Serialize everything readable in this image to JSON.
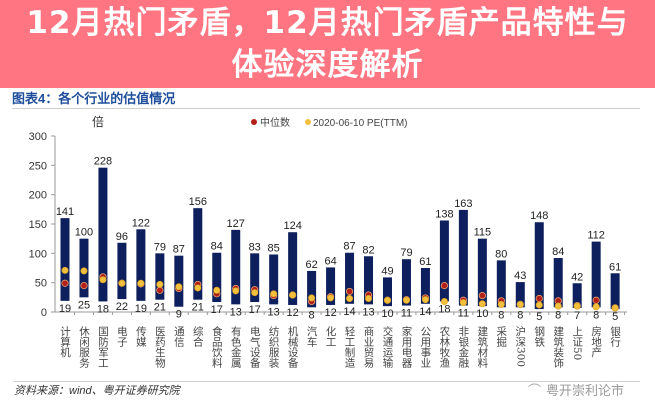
{
  "figure_title": "图表4：各个行业的估值情况",
  "source": "资料来源：wind、粤开证券研究院",
  "watermark": "粤开崇利论市",
  "banner": {
    "line1": "12月热门矛盾，12月热门矛盾产品特性与",
    "line2": "体验深度解析"
  },
  "colors": {
    "bar": "#0d1f5c",
    "median": "#b22018",
    "current": "#f2c03c",
    "title": "#1f4e9c",
    "banner": "#ff5f6e"
  },
  "chart_data": {
    "type": "bar",
    "ylabel": "倍",
    "ylim": [
      0,
      300
    ],
    "yticks": [
      "0",
      "50",
      "100",
      "150",
      "200",
      "250",
      "300"
    ],
    "legend": [
      "中位数",
      "2020-06-10 PE(TTM)"
    ],
    "legend_position": "top",
    "categories": [
      "计算机",
      "休闲服务",
      "国防军工",
      "电子",
      "传媒",
      "医药生物",
      "通信",
      "综合",
      "食品饮料",
      "有色金属",
      "电气设备",
      "纺织服装",
      "机械设备",
      "汽车",
      "化工",
      "轻工制造",
      "商业贸易",
      "交通运输",
      "家用电器",
      "公用事业",
      "农林牧渔",
      "非银金融",
      "建筑材料",
      "采掘",
      "沪深300",
      "钢铁",
      "建筑装饰",
      "上证50",
      "房地产",
      "银行"
    ],
    "min": [
      19,
      25,
      18,
      22,
      19,
      21,
      9,
      21,
      17,
      13,
      17,
      13,
      12,
      8,
      12,
      14,
      13,
      10,
      11,
      14,
      18,
      11,
      10,
      8,
      8,
      5,
      8,
      7,
      8,
      5
    ],
    "max": [
      141,
      100,
      228,
      96,
      122,
      79,
      87,
      156,
      84,
      127,
      83,
      85,
      124,
      62,
      64,
      87,
      82,
      49,
      79,
      61,
      138,
      163,
      115,
      80,
      43,
      148,
      84,
      42,
      112,
      61
    ],
    "median": [
      49,
      45,
      60,
      49,
      48,
      37,
      40,
      47,
      31,
      40,
      38,
      28,
      29,
      18,
      26,
      35,
      29,
      20,
      21,
      24,
      45,
      20,
      28,
      19,
      13,
      23,
      19,
      11,
      20,
      7
    ],
    "current": [
      71,
      70,
      55,
      49,
      49,
      47,
      43,
      41,
      37,
      36,
      33,
      31,
      29,
      24,
      24,
      23,
      23,
      20,
      20,
      21,
      18,
      16,
      14,
      13,
      13,
      12,
      10,
      10,
      9,
      7
    ]
  }
}
